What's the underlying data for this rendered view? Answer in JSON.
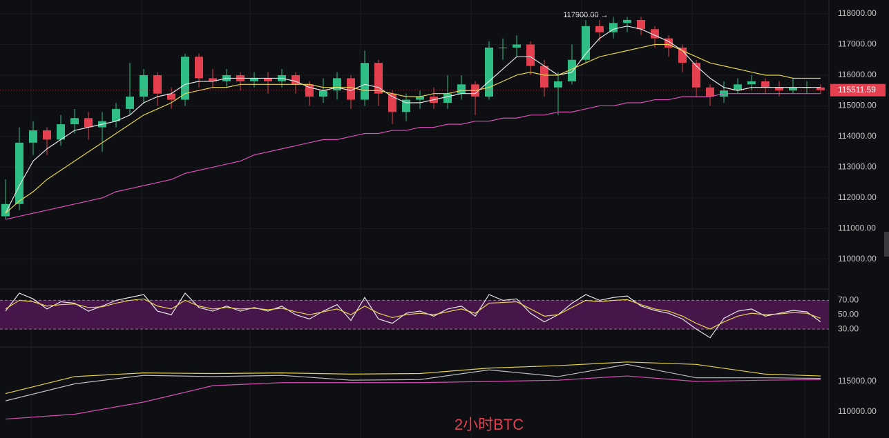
{
  "chart_data": [
    {
      "type": "candlestick",
      "annotation": "117900.00 →",
      "last_price": 115511.59,
      "watermark": "2小时BTC",
      "up_color": "#2ebd85",
      "down_color": "#e5404f",
      "last_price_color": "#e5404f",
      "open": [
        111400,
        111800,
        113800,
        114200,
        113900,
        114400,
        114600,
        114300,
        114500,
        114900,
        115300,
        116000,
        115400,
        115200,
        116600,
        115900,
        115800,
        116000,
        115800,
        115900,
        115800,
        116000,
        115700,
        115300,
        115500,
        115900,
        115200,
        116400,
        115400,
        114800,
        115200,
        115300,
        115100,
        115400,
        115700,
        115300,
        116900,
        116900,
        117000,
        116300,
        115600,
        115800,
        116500,
        117600,
        117400,
        117700,
        117800,
        117500,
        117200,
        116900,
        116400,
        115600,
        115300,
        115500,
        115700,
        115800,
        115600,
        115500,
        115600,
        115600
      ],
      "high": [
        112600,
        114300,
        114500,
        114300,
        114700,
        114900,
        114800,
        114800,
        115100,
        116400,
        116200,
        116100,
        115600,
        116700,
        116700,
        116200,
        116200,
        116100,
        116100,
        116100,
        116200,
        116100,
        115800,
        115900,
        116100,
        116000,
        116800,
        116500,
        115500,
        115400,
        115500,
        115600,
        116000,
        116000,
        115800,
        117100,
        117200,
        117300,
        117100,
        116500,
        116100,
        117000,
        117800,
        117800,
        117900,
        117900,
        117900,
        117600,
        117300,
        117000,
        116500,
        115700,
        115800,
        115900,
        116000,
        115900,
        115800,
        115900,
        115800,
        115700
      ],
      "low": [
        111300,
        111600,
        113400,
        113400,
        113700,
        114100,
        113900,
        113500,
        114300,
        114700,
        115100,
        115000,
        114900,
        115000,
        115600,
        115600,
        115600,
        115500,
        115600,
        115400,
        115600,
        115400,
        115000,
        115100,
        115200,
        114900,
        115000,
        115000,
        114400,
        114500,
        114900,
        114900,
        114900,
        115200,
        114700,
        115200,
        116500,
        116600,
        116000,
        115300,
        114700,
        115700,
        116400,
        117100,
        117200,
        117400,
        117300,
        116900,
        116600,
        116100,
        115300,
        115000,
        115100,
        115400,
        115500,
        115400,
        115300,
        115400,
        115400,
        115400
      ],
      "close": [
        111800,
        113800,
        114200,
        113900,
        114400,
        114600,
        114300,
        114500,
        114900,
        115300,
        116000,
        115400,
        115200,
        116600,
        115900,
        115800,
        116000,
        115800,
        115900,
        115800,
        116000,
        115700,
        115300,
        115500,
        115900,
        115200,
        116400,
        115400,
        114800,
        115200,
        115300,
        115100,
        115400,
        115700,
        115300,
        116900,
        116900,
        117000,
        116300,
        115600,
        115800,
        116500,
        117600,
        117400,
        117700,
        117800,
        117500,
        117200,
        116900,
        116400,
        115600,
        115300,
        115500,
        115700,
        115800,
        115600,
        115500,
        115600,
        115600,
        115511.59
      ],
      "series": [
        {
          "color": "#e6e6e6",
          "values": [
            111500,
            112400,
            113200,
            113600,
            113900,
            114200,
            114300,
            114400,
            114500,
            114700,
            115100,
            115300,
            115400,
            115700,
            115800,
            115800,
            115900,
            115900,
            115900,
            115900,
            115900,
            115800,
            115600,
            115500,
            115600,
            115500,
            115700,
            115600,
            115300,
            115100,
            115100,
            115200,
            115300,
            115400,
            115400,
            115800,
            116200,
            116600,
            116600,
            116300,
            116000,
            116100,
            116700,
            117200,
            117500,
            117600,
            117500,
            117300,
            117100,
            116800,
            116300,
            115900,
            115600,
            115500,
            115600,
            115600,
            115600,
            115600,
            115600,
            115600
          ]
        },
        {
          "color": "#e8d44d",
          "values": [
            111500,
            111900,
            112200,
            112600,
            112900,
            113200,
            113500,
            113800,
            114100,
            114400,
            114700,
            114900,
            115100,
            115400,
            115500,
            115600,
            115600,
            115700,
            115700,
            115700,
            115700,
            115700,
            115700,
            115600,
            115600,
            115600,
            115500,
            115500,
            115400,
            115300,
            115300,
            115400,
            115400,
            115500,
            115500,
            115600,
            115800,
            116000,
            116100,
            116000,
            116000,
            116200,
            116400,
            116600,
            116700,
            116800,
            116900,
            117000,
            117000,
            116800,
            116600,
            116400,
            116300,
            116200,
            116100,
            116000,
            116000,
            115900,
            115900,
            115900
          ]
        },
        {
          "color": "#d94fb5",
          "values": [
            111300,
            111400,
            111500,
            111600,
            111700,
            111800,
            111900,
            112000,
            112200,
            112300,
            112400,
            112500,
            112600,
            112800,
            112900,
            113000,
            113100,
            113200,
            113400,
            113500,
            113600,
            113700,
            113800,
            113900,
            113900,
            114000,
            114100,
            114100,
            114200,
            114200,
            114300,
            114300,
            114400,
            114400,
            114500,
            114500,
            114600,
            114600,
            114700,
            114700,
            114800,
            114800,
            114900,
            115000,
            115000,
            115100,
            115100,
            115200,
            115200,
            115300,
            115300,
            115300,
            115400,
            115400,
            115400,
            115400,
            115400,
            115400,
            115400,
            115400
          ]
        }
      ],
      "ylim": [
        109120,
        118450
      ],
      "yticks": [
        {
          "value": 110000,
          "label": "110000.00"
        },
        {
          "value": 111000,
          "label": "111000.00"
        },
        {
          "value": 112000,
          "label": "112000.00"
        },
        {
          "value": 113000,
          "label": "113000.00"
        },
        {
          "value": 114000,
          "label": "114000.00"
        },
        {
          "value": 115000,
          "label": "115000.00"
        },
        {
          "value": 116000,
          "label": "116000.00"
        },
        {
          "value": 117000,
          "label": "117000.00"
        },
        {
          "value": 118000,
          "label": "118000.00"
        }
      ],
      "grid": true
    },
    {
      "type": "line",
      "band_color": "#5a1a5e",
      "series": [
        {
          "color": "#e6e6e6",
          "values": [
            55,
            80,
            72,
            58,
            68,
            66,
            55,
            62,
            70,
            74,
            78,
            55,
            50,
            80,
            60,
            55,
            62,
            55,
            60,
            55,
            62,
            50,
            44,
            55,
            64,
            42,
            74,
            44,
            38,
            52,
            55,
            48,
            58,
            62,
            48,
            78,
            70,
            72,
            52,
            40,
            50,
            66,
            78,
            70,
            74,
            76,
            62,
            56,
            52,
            44,
            30,
            18,
            45,
            55,
            58,
            48,
            52,
            56,
            54,
            40
          ]
        },
        {
          "color": "#e8d44d",
          "values": [
            58,
            70,
            68,
            62,
            64,
            65,
            60,
            61,
            66,
            70,
            72,
            62,
            58,
            70,
            62,
            58,
            60,
            58,
            59,
            57,
            59,
            54,
            50,
            54,
            58,
            50,
            62,
            52,
            46,
            50,
            52,
            50,
            54,
            58,
            52,
            66,
            67,
            68,
            58,
            48,
            50,
            60,
            70,
            68,
            70,
            71,
            64,
            58,
            55,
            48,
            38,
            30,
            40,
            48,
            52,
            50,
            51,
            53,
            52,
            45
          ]
        }
      ],
      "ylim": [
        8,
        80
      ],
      "yticks": [
        {
          "value": 70,
          "label": "70.00"
        },
        {
          "value": 50,
          "label": "50.00"
        },
        {
          "value": 30,
          "label": "30.00"
        }
      ]
    },
    {
      "type": "line",
      "x": [
        0,
        5,
        10,
        15,
        20,
        25,
        30,
        35,
        40,
        45,
        50,
        55,
        59
      ],
      "series": [
        {
          "color": "#bfbfbf",
          "values": [
            111800,
            114600,
            116000,
            115800,
            116000,
            115200,
            115300,
            116900,
            115800,
            117800,
            115600,
            115600,
            115500
          ]
        },
        {
          "color": "#e8d44d",
          "values": [
            113000,
            115800,
            116400,
            116300,
            116400,
            116200,
            116300,
            117200,
            117600,
            118200,
            117800,
            116200,
            115900
          ]
        },
        {
          "color": "#d94fb5",
          "values": [
            108800,
            109600,
            111600,
            114300,
            114800,
            114800,
            114800,
            115000,
            115200,
            115900,
            115000,
            115200,
            115300
          ]
        }
      ],
      "ylim": [
        105680,
        120450
      ],
      "yticks": [
        {
          "value": 110000,
          "label": "110000.00"
        },
        {
          "value": 115000,
          "label": "115000.00"
        }
      ]
    }
  ]
}
